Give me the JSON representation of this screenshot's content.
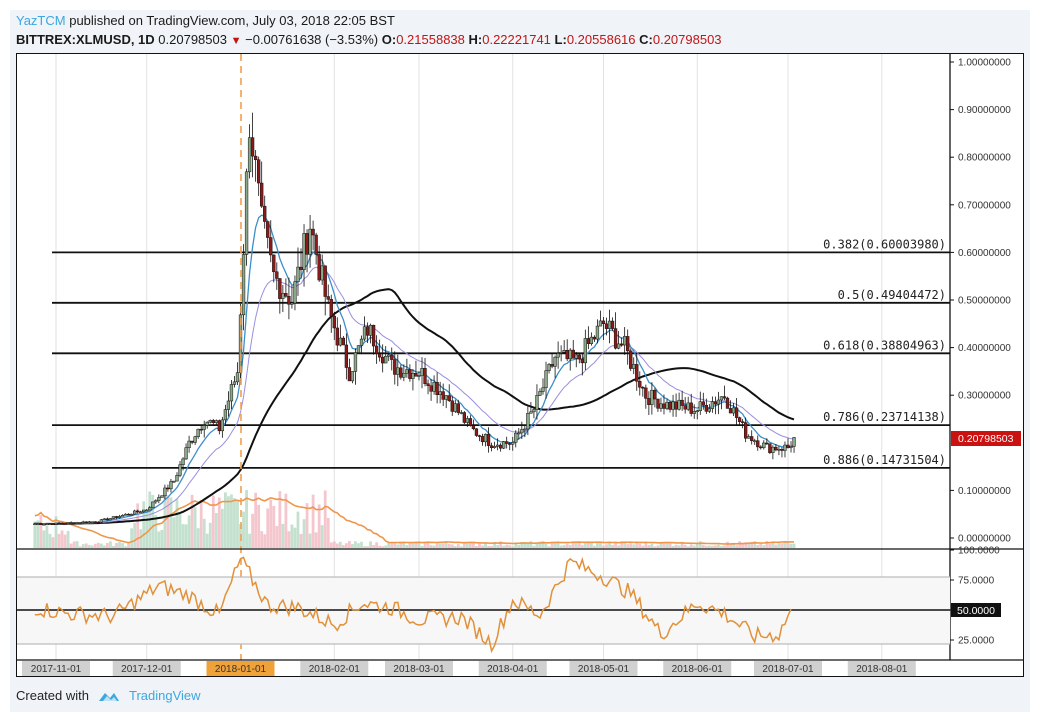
{
  "header": {
    "author": "YazTCM",
    "published_text": " published on TradingView.com, July 03, 2018 22:05 BST",
    "symbol": "BITTREX:XLMUSD, 1D",
    "last": "0.20798503",
    "change_arrow": "▼",
    "change": "−0.00761638 (−3.53%)",
    "o_label": "O:",
    "o": "0.21558838",
    "h_label": "H:",
    "h": "0.22221741",
    "l_label": "L:",
    "l": "0.20558616",
    "c_label": "C:",
    "c": "0.20798503"
  },
  "footer": {
    "created_with": "Created with",
    "brand": "TradingView",
    "logo_icon": "tradingview-cloud-icon"
  },
  "colors": {
    "up_candle": "#8ba888",
    "down_candle": "#8b1a1a",
    "fib_line": "#111111",
    "ema_fast": "#3d8fc7",
    "ema_slow": "#9a8fe0",
    "ma_long": "#111111",
    "volume_ma": "#f0964a",
    "rsi": "#e0913a",
    "price_tag": "#cc1111",
    "date_highlight": "#f0a23a"
  },
  "chart_data": [
    {
      "type": "candlestick",
      "title": "BITTREX:XLMUSD, 1D",
      "xlabel": "",
      "ylabel": "Price (USD)",
      "ylim": [
        0.0,
        1.0
      ],
      "y_ticks": [
        "1.00000000",
        "0.90000000",
        "0.80000000",
        "0.70000000",
        "0.60000000",
        "0.50000000",
        "0.40000000",
        "0.30000000",
        "0.10000000",
        "0.00000000"
      ],
      "x_ticks": [
        "2017-11-01",
        "2017-12-01",
        "2018-01-01",
        "2018-02-01",
        "2018-03-01",
        "2018-04-01",
        "2018-05-01",
        "2018-06-01",
        "2018-07-01",
        "2018-08-01"
      ],
      "highlighted_x_tick": "2018-01-01",
      "current_price_label": "0.20798503",
      "fib_levels": [
        {
          "label": "0.382(0.60003980)",
          "ratio": 0.382,
          "price": 0.6000398
        },
        {
          "label": "0.5(0.49404472)",
          "ratio": 0.5,
          "price": 0.49404472
        },
        {
          "label": "0.618(0.38804963)",
          "ratio": 0.618,
          "price": 0.38804963
        },
        {
          "label": "0.786(0.23714138)",
          "ratio": 0.786,
          "price": 0.23714138
        },
        {
          "label": "0.886(0.14731504)",
          "ratio": 0.886,
          "price": 0.14731504
        }
      ],
      "vertical_marker": {
        "date": "2018-01-01",
        "style": "dashed orange"
      },
      "approx_close_series": {
        "dates": [
          "2017-10-25",
          "2017-11-01",
          "2017-11-15",
          "2017-12-01",
          "2017-12-10",
          "2017-12-15",
          "2017-12-20",
          "2017-12-25",
          "2017-12-31",
          "2018-01-04",
          "2018-01-08",
          "2018-01-12",
          "2018-01-18",
          "2018-01-24",
          "2018-01-30",
          "2018-02-06",
          "2018-02-12",
          "2018-02-20",
          "2018-03-01",
          "2018-03-10",
          "2018-03-18",
          "2018-03-25",
          "2018-04-01",
          "2018-04-08",
          "2018-04-15",
          "2018-04-22",
          "2018-05-01",
          "2018-05-08",
          "2018-05-15",
          "2018-05-22",
          "2018-06-01",
          "2018-06-10",
          "2018-06-17",
          "2018-06-24",
          "2018-07-01",
          "2018-07-03"
        ],
        "close": [
          0.03,
          0.03,
          0.035,
          0.06,
          0.12,
          0.2,
          0.25,
          0.23,
          0.35,
          0.88,
          0.66,
          0.55,
          0.5,
          0.66,
          0.48,
          0.35,
          0.44,
          0.36,
          0.35,
          0.3,
          0.23,
          0.2,
          0.2,
          0.27,
          0.38,
          0.37,
          0.45,
          0.4,
          0.3,
          0.28,
          0.27,
          0.3,
          0.22,
          0.19,
          0.19,
          0.208
        ]
      },
      "indicators": [
        {
          "name": "EMA fast",
          "color": "#3d8fc7"
        },
        {
          "name": "EMA slow",
          "color": "#9a8fe0"
        },
        {
          "name": "MA long (black)",
          "approx_end_value": 0.275
        },
        {
          "name": "Volume + volume MA (orange)"
        }
      ]
    },
    {
      "type": "line",
      "title": "RSI",
      "ylim": [
        14,
        100
      ],
      "y_ticks": [
        "100.0000",
        "75.0000",
        "50.0000",
        "25.0000"
      ],
      "bands": [
        80,
        50,
        20
      ],
      "current_label": "50.0000",
      "approx_values": {
        "dates": [
          "2017-10-25",
          "2017-11-05",
          "2017-11-20",
          "2017-12-05",
          "2017-12-15",
          "2017-12-25",
          "2018-01-01",
          "2018-01-10",
          "2018-01-20",
          "2018-02-01",
          "2018-02-10",
          "2018-02-20",
          "2018-03-01",
          "2018-03-15",
          "2018-03-25",
          "2018-04-01",
          "2018-04-10",
          "2018-04-20",
          "2018-05-01",
          "2018-05-10",
          "2018-05-20",
          "2018-06-01",
          "2018-06-10",
          "2018-06-20",
          "2018-06-28",
          "2018-07-03"
        ],
        "rsi": [
          52,
          47,
          45,
          70,
          62,
          46,
          92,
          54,
          52,
          38,
          56,
          52,
          42,
          44,
          22,
          58,
          46,
          90,
          78,
          64,
          30,
          56,
          47,
          28,
          30,
          55
        ]
      }
    }
  ]
}
